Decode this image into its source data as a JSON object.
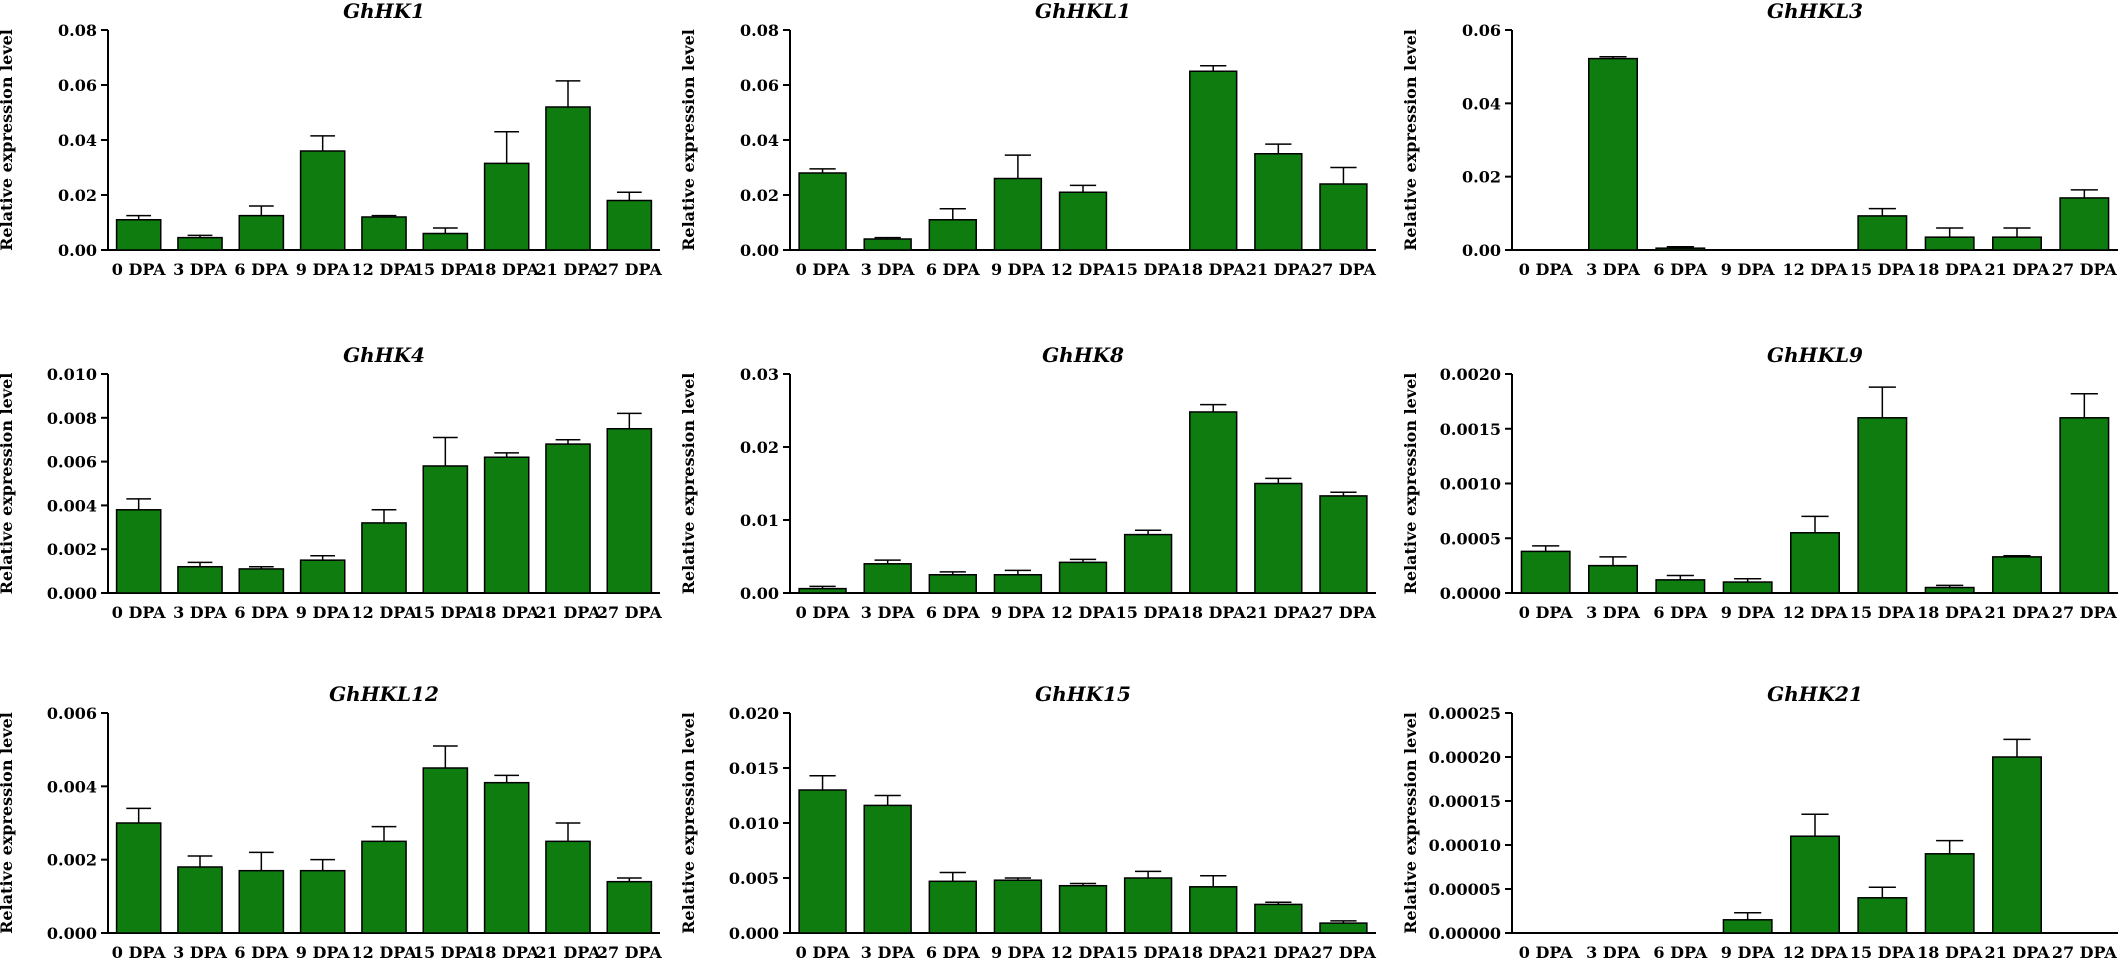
{
  "colors": {
    "bar": "#0e7c0e",
    "outline": "#000000"
  },
  "chart_data": [
    {
      "type": "bar",
      "title": "GhHK1",
      "ylabel": "Relative expression  level",
      "categories": [
        "0 DPA",
        "3 DPA",
        "6 DPA",
        "9 DPA",
        "12 DPA",
        "15 DPA",
        "18 DPA",
        "21 DPA",
        "27 DPA"
      ],
      "values": [
        0.011,
        0.0045,
        0.0125,
        0.036,
        0.012,
        0.006,
        0.0315,
        0.052,
        0.018
      ],
      "errors": [
        0.0015,
        0.0008,
        0.0035,
        0.0055,
        0.0005,
        0.002,
        0.0115,
        0.0095,
        0.003
      ],
      "ylim": [
        0,
        0.08
      ],
      "yticks": [
        "0.00",
        "0.02",
        "0.04",
        "0.06",
        "0.08"
      ]
    },
    {
      "type": "bar",
      "title": "GhHKL1",
      "ylabel": "Relative expression  level",
      "categories": [
        "0 DPA",
        "3 DPA",
        "6 DPA",
        "9 DPA",
        "12 DPA",
        "15 DPA",
        "18 DPA",
        "21 DPA",
        "27 DPA"
      ],
      "values": [
        0.028,
        0.004,
        0.011,
        0.026,
        0.021,
        0,
        0.065,
        0.035,
        0.024
      ],
      "errors": [
        0.0015,
        0.0005,
        0.004,
        0.0085,
        0.0025,
        0,
        0.002,
        0.0035,
        0.006
      ],
      "ylim": [
        0,
        0.08
      ],
      "yticks": [
        "0.00",
        "0.02",
        "0.04",
        "0.06",
        "0.08"
      ]
    },
    {
      "type": "bar",
      "title": "GhHKL3",
      "ylabel": "Relative expression  level",
      "categories": [
        "0 DPA",
        "3 DPA",
        "6 DPA",
        "9 DPA",
        "12 DPA",
        "15 DPA",
        "18 DPA",
        "21 DPA",
        "27 DPA"
      ],
      "values": [
        0,
        0.0522,
        0.0005,
        0,
        0,
        0.0093,
        0.0035,
        0.0035,
        0.0142
      ],
      "errors": [
        0,
        0.0005,
        0.0004,
        0,
        0,
        0.002,
        0.0025,
        0.0025,
        0.0022
      ],
      "ylim": [
        0,
        0.06
      ],
      "yticks": [
        "0.00",
        "0.02",
        "0.04",
        "0.06"
      ]
    },
    {
      "type": "bar",
      "title": "GhHK4",
      "ylabel": "Relative expression  level",
      "categories": [
        "0 DPA",
        "3 DPA",
        "6 DPA",
        "9 DPA",
        "12 DPA",
        "15 DPA",
        "18 DPA",
        "21 DPA",
        "27 DPA"
      ],
      "values": [
        0.0038,
        0.0012,
        0.0011,
        0.0015,
        0.0032,
        0.0058,
        0.0062,
        0.0068,
        0.0075
      ],
      "errors": [
        0.0005,
        0.0002,
        0.0001,
        0.0002,
        0.0006,
        0.0013,
        0.0002,
        0.0002,
        0.0007
      ],
      "ylim": [
        0,
        0.01
      ],
      "yticks": [
        "0.000",
        "0.002",
        "0.004",
        "0.006",
        "0.008",
        "0.010"
      ]
    },
    {
      "type": "bar",
      "title": "GhHK8",
      "ylabel": "Relative expression  level",
      "categories": [
        "0 DPA",
        "3 DPA",
        "6 DPA",
        "9 DPA",
        "12 DPA",
        "15 DPA",
        "18 DPA",
        "21 DPA",
        "27 DPA"
      ],
      "values": [
        0.0006,
        0.004,
        0.0025,
        0.0025,
        0.0042,
        0.008,
        0.0248,
        0.015,
        0.0133
      ],
      "errors": [
        0.0003,
        0.0005,
        0.0004,
        0.0006,
        0.0004,
        0.0006,
        0.001,
        0.0007,
        0.0005
      ],
      "ylim": [
        0,
        0.03
      ],
      "yticks": [
        "0.00",
        "0.01",
        "0.02",
        "0.03"
      ]
    },
    {
      "type": "bar",
      "title": "GhHKL9",
      "ylabel": "Relative expression  level",
      "categories": [
        "0 DPA",
        "3 DPA",
        "6 DPA",
        "9 DPA",
        "12 DPA",
        "15 DPA",
        "18 DPA",
        "21 DPA",
        "27 DPA"
      ],
      "values": [
        0.00038,
        0.00025,
        0.00012,
        0.0001,
        0.00055,
        0.0016,
        5e-05,
        0.00033,
        0.0016
      ],
      "errors": [
        5e-05,
        8e-05,
        4e-05,
        3e-05,
        0.00015,
        0.00028,
        2e-05,
        1e-05,
        0.00022
      ],
      "ylim": [
        0,
        0.002
      ],
      "yticks": [
        "0.0000",
        "0.0005",
        "0.0010",
        "0.0015",
        "0.0020"
      ]
    },
    {
      "type": "bar",
      "title": "GhHKL12",
      "ylabel": "Relative expression  level",
      "categories": [
        "0 DPA",
        "3 DPA",
        "6 DPA",
        "9 DPA",
        "12 DPA",
        "15 DPA",
        "18 DPA",
        "21 DPA",
        "27 DPA"
      ],
      "values": [
        0.003,
        0.0018,
        0.0017,
        0.0017,
        0.0025,
        0.0045,
        0.0041,
        0.0025,
        0.0014
      ],
      "errors": [
        0.0004,
        0.0003,
        0.0005,
        0.0003,
        0.0004,
        0.0006,
        0.0002,
        0.0005,
        0.0001
      ],
      "ylim": [
        0,
        0.006
      ],
      "yticks": [
        "0.000",
        "0.002",
        "0.004",
        "0.006"
      ]
    },
    {
      "type": "bar",
      "title": "GhHK15",
      "ylabel": "Relative expression  level",
      "categories": [
        "0 DPA",
        "3 DPA",
        "6 DPA",
        "9 DPA",
        "12 DPA",
        "15 DPA",
        "18 DPA",
        "21 DPA",
        "27 DPA"
      ],
      "values": [
        0.013,
        0.0116,
        0.0047,
        0.0048,
        0.0043,
        0.005,
        0.0042,
        0.0026,
        0.0009
      ],
      "errors": [
        0.0013,
        0.0009,
        0.0008,
        0.0002,
        0.0002,
        0.0006,
        0.001,
        0.0002,
        0.0002
      ],
      "ylim": [
        0,
        0.02
      ],
      "yticks": [
        "0.000",
        "0.005",
        "0.010",
        "0.015",
        "0.020"
      ]
    },
    {
      "type": "bar",
      "title": "GhHK21",
      "ylabel": "Relative expression  level",
      "categories": [
        "0 DPA",
        "3 DPA",
        "6 DPA",
        "9 DPA",
        "12 DPA",
        "15 DPA",
        "18 DPA",
        "21 DPA",
        "27 DPA"
      ],
      "values": [
        0,
        0,
        0,
        1.5e-05,
        0.00011,
        4e-05,
        9e-05,
        0.0002,
        0
      ],
      "errors": [
        0,
        0,
        0,
        8e-06,
        2.5e-05,
        1.2e-05,
        1.5e-05,
        2e-05,
        0
      ],
      "ylim": [
        0,
        0.00025
      ],
      "yticks": [
        "0.00000",
        "0.00005",
        "0.00010",
        "0.00015",
        "0.00020",
        "0.00025"
      ]
    }
  ]
}
